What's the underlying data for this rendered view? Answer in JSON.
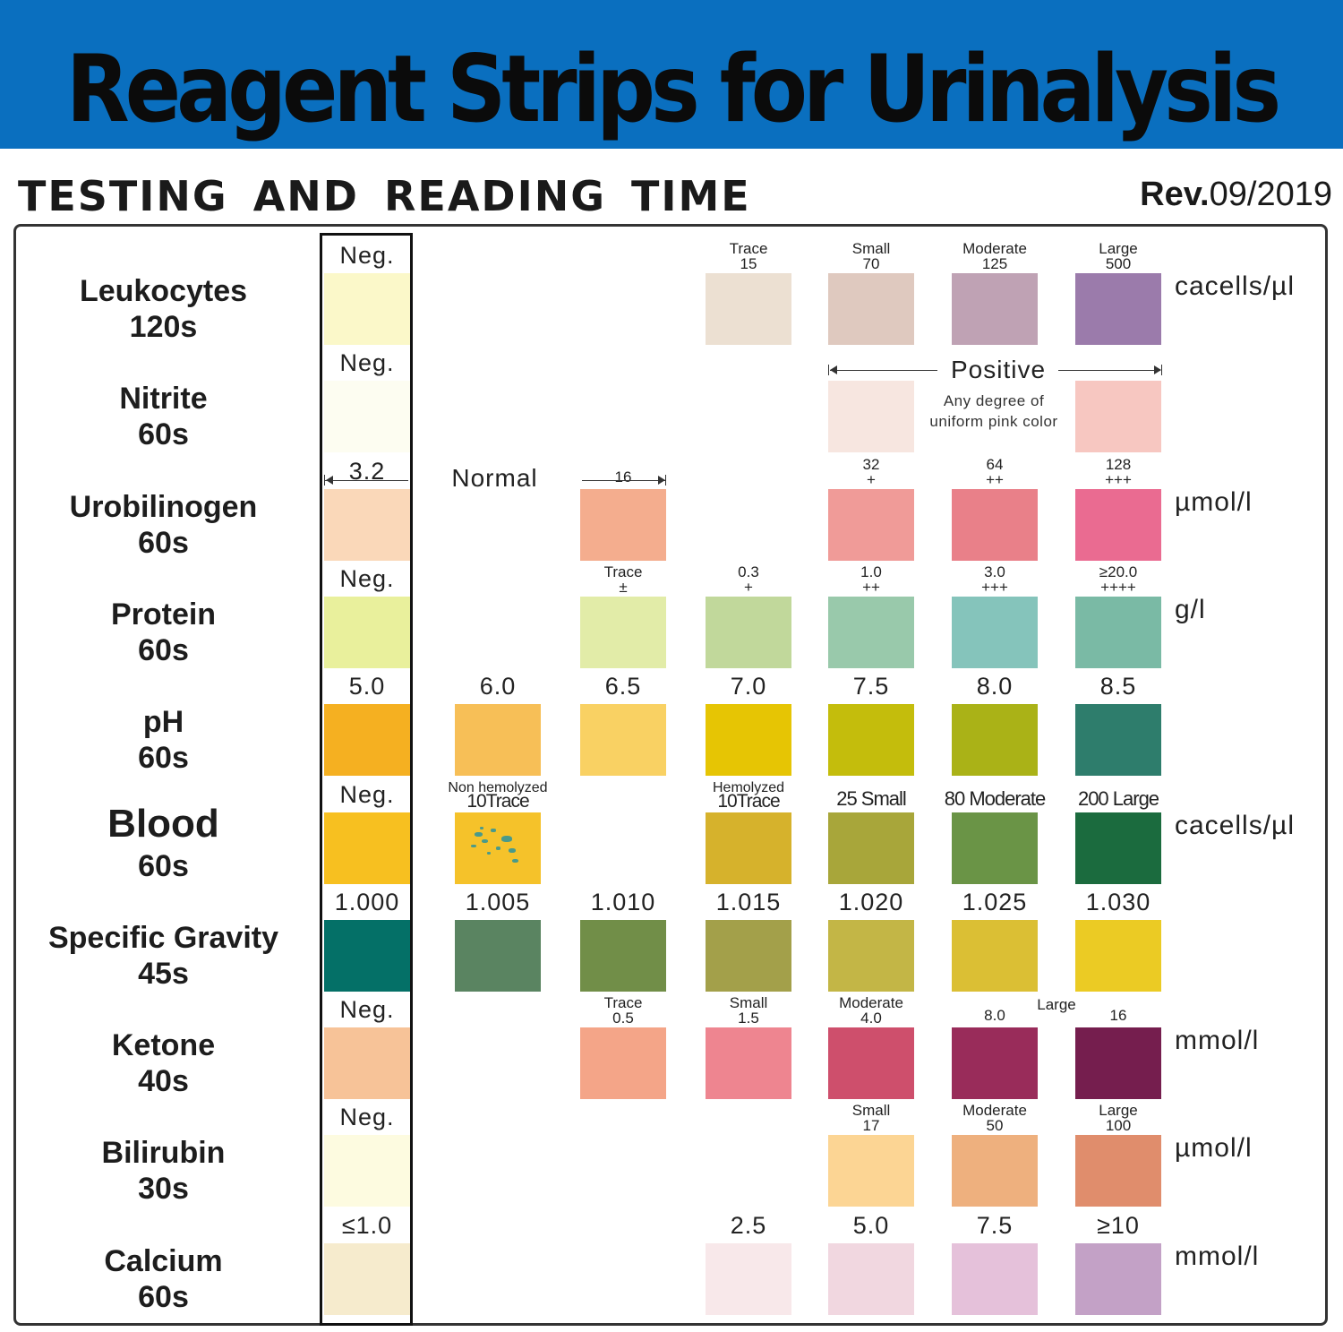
{
  "header": {
    "title": "Reagent Strips for Urinalysis",
    "subtitle": "TESTING AND READING TIME",
    "rev_word": "Rev.",
    "rev_date": "09/2019"
  },
  "rows": [
    {
      "name": "Leukocytes",
      "time": "120s",
      "unit": "cacells/µl",
      "neg": {
        "label": "Neg.",
        "color": "#fbf8c9"
      },
      "pads": [
        {
          "col": 3,
          "l1": "Trace",
          "l2": "15",
          "color": "#ece0d2"
        },
        {
          "col": 4,
          "l1": "Small",
          "l2": "70",
          "color": "#dfc9bf"
        },
        {
          "col": 5,
          "l1": "Moderate",
          "l2": "125",
          "color": "#bfa2b4"
        },
        {
          "col": 6,
          "l1": "Large",
          "l2": "500",
          "color": "#9b7bab"
        }
      ]
    },
    {
      "name": "Nitrite",
      "time": "60s",
      "neg": {
        "label": "Neg.",
        "color": "#fdfdf1"
      },
      "positive_label": "Positive",
      "positive_note": "Any degree of uniform pink color",
      "pads": [
        {
          "col": 4,
          "color": "#f7e6e0"
        },
        {
          "col": 6,
          "color": "#f7c7c1"
        }
      ]
    },
    {
      "name": "Urobilinogen",
      "time": "60s",
      "unit": "µmol/l",
      "neg": {
        "label": "3.2",
        "color": "#fad8b9"
      },
      "normal_label": "Normal",
      "pads": [
        {
          "col": 2,
          "l1": "16",
          "color": "#f4ad8e"
        },
        {
          "col": 4,
          "l1": "32",
          "l2": "+",
          "color": "#f09b98"
        },
        {
          "col": 5,
          "l1": "64",
          "l2": "++",
          "color": "#e98089"
        },
        {
          "col": 6,
          "l1": "128",
          "l2": "+++",
          "color": "#ea6b91"
        }
      ]
    },
    {
      "name": "Protein",
      "time": "60s",
      "unit": "g/l",
      "neg": {
        "label": "Neg.",
        "color": "#e9f09c"
      },
      "pads": [
        {
          "col": 2,
          "l1": "Trace",
          "l2": "±",
          "color": "#e2eca8"
        },
        {
          "col": 3,
          "l1": "0.3",
          "l2": "+",
          "color": "#c1d89b"
        },
        {
          "col": 4,
          "l1": "1.0",
          "l2": "++",
          "color": "#99c9ab"
        },
        {
          "col": 5,
          "l1": "3.0",
          "l2": "+++",
          "color": "#85c4bb"
        },
        {
          "col": 6,
          "l1": "≥20.0",
          "l2": "++++",
          "color": "#7abaa5"
        }
      ]
    },
    {
      "name": "pH",
      "time": "60s",
      "neg": {
        "label": "5.0",
        "color": "#f5b021"
      },
      "pads": [
        {
          "col": 1,
          "l1": "6.0",
          "color": "#f7bf57"
        },
        {
          "col": 2,
          "l1": "6.5",
          "color": "#f9d163"
        },
        {
          "col": 3,
          "l1": "7.0",
          "color": "#e6c504"
        },
        {
          "col": 4,
          "l1": "7.5",
          "color": "#c4bd0c"
        },
        {
          "col": 5,
          "l1": "8.0",
          "color": "#aab217"
        },
        {
          "col": 6,
          "l1": "8.5",
          "color": "#2e7d6c"
        }
      ]
    },
    {
      "name": "Blood",
      "time": "60s",
      "unit": "cacells/µl",
      "big": true,
      "neg": {
        "label": "Neg.",
        "color": "#f7c020"
      },
      "pads": [
        {
          "col": 1,
          "l1": "Non hemolyzed",
          "l2": "10Trace",
          "color": "#f5c22a",
          "specks": true
        },
        {
          "col": 3,
          "l1": "Hemolyzed",
          "l2": "10Trace",
          "color": "#d6b22c"
        },
        {
          "col": 4,
          "l1": "25 Small",
          "color": "#a8a63a"
        },
        {
          "col": 5,
          "l1": "80 Moderate",
          "color": "#6a9446"
        },
        {
          "col": 6,
          "l1": "200 Large",
          "color": "#1b6b3e"
        }
      ]
    },
    {
      "name": "Specific Gravity",
      "time": "45s",
      "neg": {
        "label": "1.000",
        "color": "#047067"
      },
      "pads": [
        {
          "col": 1,
          "l1": "1.005",
          "color": "#5a8461"
        },
        {
          "col": 2,
          "l1": "1.010",
          "color": "#718e48"
        },
        {
          "col": 3,
          "l1": "1.015",
          "color": "#a3a04a"
        },
        {
          "col": 4,
          "l1": "1.020",
          "color": "#c3b646"
        },
        {
          "col": 5,
          "l1": "1.025",
          "color": "#dbbf34"
        },
        {
          "col": 6,
          "l1": "1.030",
          "color": "#ebcb24"
        }
      ]
    },
    {
      "name": "Ketone",
      "time": "40s",
      "unit": "mmol/l",
      "neg": {
        "label": "Neg.",
        "color": "#f7c398"
      },
      "large_word": "Large",
      "pads": [
        {
          "col": 2,
          "l1": "Trace",
          "l2": "0.5",
          "color": "#f4a588"
        },
        {
          "col": 3,
          "l1": "Small",
          "l2": "1.5",
          "color": "#ee8590"
        },
        {
          "col": 4,
          "l1": "Moderate",
          "l2": "4.0",
          "color": "#ce4f6c"
        },
        {
          "col": 5,
          "l2": "8.0",
          "color": "#992c5a"
        },
        {
          "col": 6,
          "l2": "16",
          "color": "#751e4e"
        }
      ]
    },
    {
      "name": "Bilirubin",
      "time": "30s",
      "unit": "µmol/l",
      "neg": {
        "label": "Neg.",
        "color": "#fdfbe0"
      },
      "pads": [
        {
          "col": 4,
          "l1": "Small",
          "l2": "17",
          "color": "#fcd594"
        },
        {
          "col": 5,
          "l1": "Moderate",
          "l2": "50",
          "color": "#eeb07e"
        },
        {
          "col": 6,
          "l1": "Large",
          "l2": "100",
          "color": "#e08d6c"
        }
      ]
    },
    {
      "name": "Calcium",
      "time": "60s",
      "unit": "mmol/l",
      "neg": {
        "label": "≤1.0",
        "color": "#f6ebcd"
      },
      "pads": [
        {
          "col": 3,
          "l1": "2.5",
          "color": "#f8e8ea"
        },
        {
          "col": 4,
          "l1": "5.0",
          "color": "#f1d7e0"
        },
        {
          "col": 5,
          "l1": "7.5",
          "color": "#e5c1da"
        },
        {
          "col": 6,
          "l1": "≥10",
          "color": "#c3a1c6"
        }
      ]
    }
  ]
}
